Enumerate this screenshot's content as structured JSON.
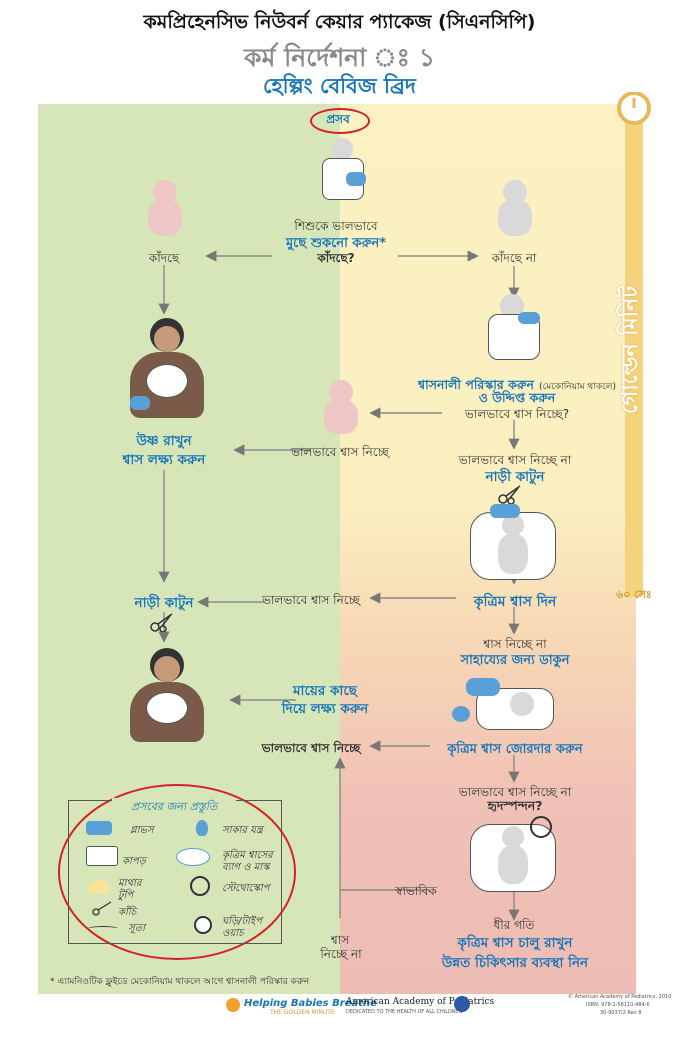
{
  "header": {
    "title": "কমপ্রিহেনসিভ নিউবর্ন কেয়ার প্যাকেজ (সিএনসিপি)",
    "subtitle": "কর্ম নির্দেশনা ঃ ১",
    "program": "হেল্পিং বেবিজ ব্রিদ"
  },
  "flow": {
    "birth": "প্রসব",
    "dry_q1": "শিশুকে ভালভাবে",
    "dry_q2": "মুছে শুকনো করুন*",
    "dry_q3": "কাঁদছে?",
    "crying": "কাঁদছে",
    "not_crying": "কাঁদছে না",
    "clear_airway": "শ্বাসনালী পরিস্কার করুন",
    "meconium": "(মেকোনিয়াম থাকলে)",
    "stimulate": "ও উদ্দিপ্ত করুন",
    "breathing_q": "ভালভাবে শ্বাস নিচ্ছে?",
    "breathing_well_1": "ভালভাবে শ্বাস নিচ্ছে",
    "keep_warm": "উষ্ণ রাখুন",
    "check_breathing": "শ্বাস লক্ষ্য করুন",
    "not_breathing_well_1": "ভালভাবে শ্বাস নিচ্ছে না",
    "cut_cord_1": "নাড়ী কাটুন",
    "ventilate": "কৃত্রিম শ্বাস দিন",
    "breathing_well_2": "ভালভাবে শ্বাস নিচ্ছে",
    "cut_cord_2": "নাড়ী কাটুন",
    "not_breathing": "শ্বাস নিচ্ছে না",
    "call_help": "সাহায্যের জন্য ডাকুন",
    "with_mother_1": "মায়ের কাছে",
    "with_mother_2": "দিয়ে লক্ষ্য করুন",
    "breathing_well_3": "ভালভাবে শ্বাস নিচ্ছে",
    "improve_ventilation": "কৃত্রিম শ্বাস জোরদার করুন",
    "not_breathing_well_2": "ভালভাবে শ্বাস নিচ্ছে না",
    "heart_rate_q": "হৃদস্পন্দন?",
    "normal": "স্বাভাবিক",
    "slow": "ধীর গতি",
    "no_breath_1": "শ্বাস",
    "no_breath_2": "নিচ্ছে না",
    "continue_vent": "কৃত্রিম শ্বাস চালু রাখুন",
    "advanced_care": "উন্নত চিকিৎসার ব্যবস্থা নিন"
  },
  "timer": {
    "label": "গোল্ডেন মিনিট",
    "seconds": "৬০ সেঃ"
  },
  "prep": {
    "title": "প্রসবের জন্য প্রস্তুতি",
    "items": {
      "gloves": "গ্লাভস",
      "suction": "সাকার যন্ত্র",
      "cloths": "কাপড়",
      "bag_1": "কৃত্রিম শ্বাসের",
      "bag_2": "ব্যাগ ও মাস্ক",
      "cap_1": "মাথার",
      "cap_2": "টুপি",
      "stethoscope": "স্টেথোস্কোপ",
      "scissors": "কাঁচি",
      "ties": "সূতা",
      "clock_1": "ঘড়ি/টাইপ",
      "clock_2": "ওয়াচ"
    }
  },
  "footnote": "* এ্যামনিওটিক ফ্লুইডে মেকোনিয়াম থাকলে আগে শ্বাসনালী পরিস্কার করুন",
  "footer": {
    "hbb": "Helping Babies Breathe",
    "hbb_sub": "THE GOLDEN MINUTE",
    "aap": "American Academy of Pediatrics",
    "aap_sub": "DEDICATED TO THE HEALTH OF ALL CHILDREN",
    "copyright_1": "© American Academy of Pediatrics, 2010",
    "copyright_2": "ISBN: 978-1-58110-484-6",
    "copyright_3": "30-9037/2 Rev 8"
  },
  "colors": {
    "green_bg": "#d6e6b8",
    "yellow_bg": "#fbf1c2",
    "pink_bg": "#eebcb4",
    "accent_blue": "#1675b8",
    "timer_gold": "#e9b85a",
    "highlight_red": "#d91f26"
  }
}
